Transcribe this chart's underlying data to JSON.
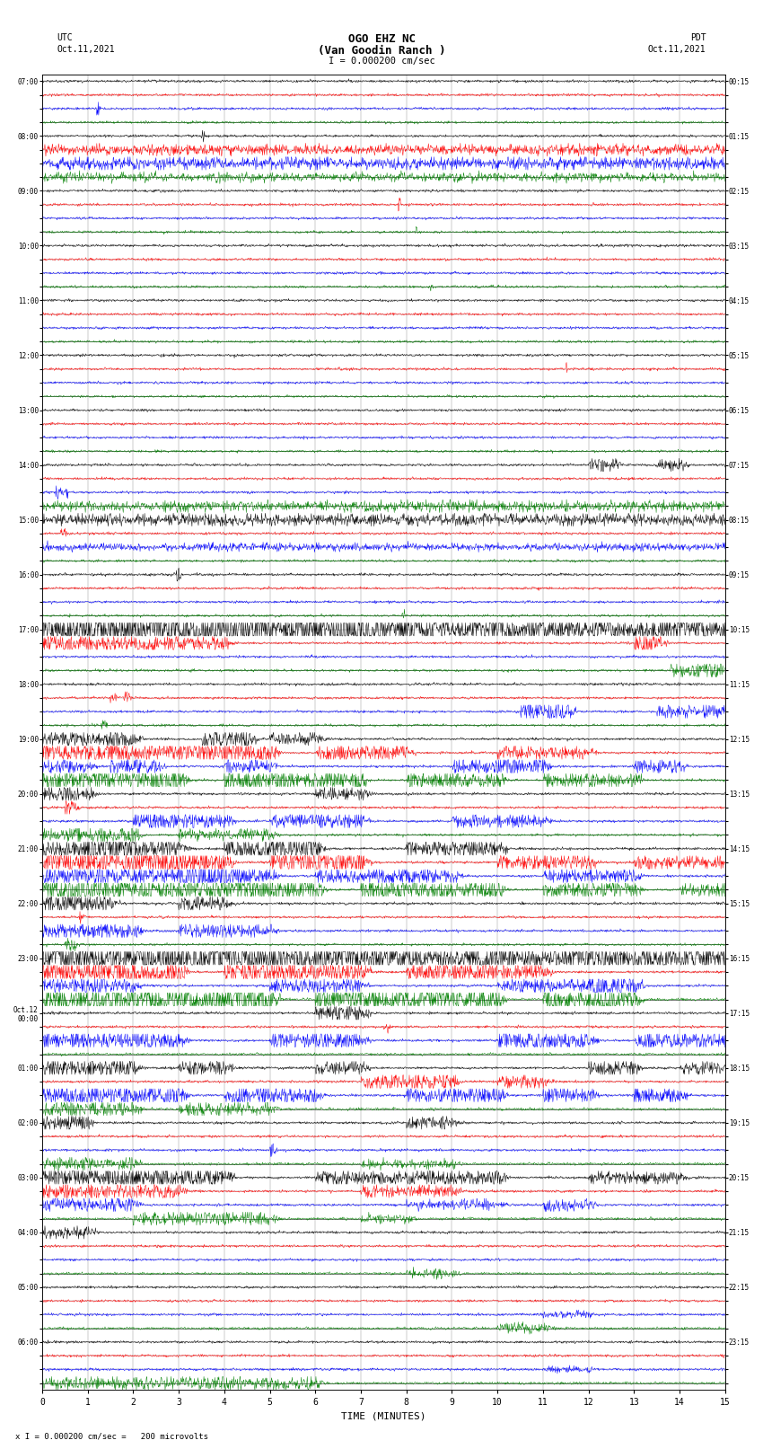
{
  "title_line1": "OGO EHZ NC",
  "title_line2": "(Van Goodin Ranch )",
  "title_line3": "I = 0.000200 cm/sec",
  "left_label_top": "UTC",
  "left_label_date": "Oct.11,2021",
  "right_label_top": "PDT",
  "right_label_date": "Oct.11,2021",
  "xlabel": "TIME (MINUTES)",
  "footer": "x I = 0.000200 cm/sec =   200 microvolts",
  "minutes_per_row": 15,
  "xlim": [
    0,
    15
  ],
  "xticks": [
    0,
    1,
    2,
    3,
    4,
    5,
    6,
    7,
    8,
    9,
    10,
    11,
    12,
    13,
    14,
    15
  ],
  "trace_colors": [
    "black",
    "red",
    "blue",
    "green"
  ],
  "background_color": "#ffffff",
  "grid_color": "#888888",
  "fig_width": 8.5,
  "fig_height": 16.13,
  "utc_labels": {
    "0": "07:00",
    "4": "08:00",
    "8": "09:00",
    "12": "10:00",
    "16": "11:00",
    "20": "12:00",
    "24": "13:00",
    "28": "14:00",
    "32": "15:00",
    "36": "16:00",
    "40": "17:00",
    "44": "18:00",
    "48": "19:00",
    "52": "20:00",
    "56": "21:00",
    "60": "22:00",
    "64": "23:00",
    "68": "Oct.12\n00:00",
    "72": "01:00",
    "76": "02:00",
    "80": "03:00",
    "84": "04:00",
    "88": "05:00",
    "92": "06:00"
  },
  "pdt_labels": {
    "0": "00:15",
    "4": "01:15",
    "8": "02:15",
    "12": "03:15",
    "16": "04:15",
    "20": "05:15",
    "24": "06:15",
    "28": "07:15",
    "32": "08:15",
    "36": "09:15",
    "40": "10:15",
    "44": "11:15",
    "48": "12:15",
    "52": "13:15",
    "56": "14:15",
    "60": "15:15",
    "64": "16:15",
    "68": "17:15",
    "72": "18:15",
    "76": "19:15",
    "80": "20:15",
    "84": "21:15",
    "88": "22:15",
    "92": "23:15"
  },
  "num_rows": 96,
  "row_configs": [
    [
      0,
      0.008,
      []
    ],
    [
      1,
      0.006,
      []
    ],
    [
      2,
      0.006,
      [
        [
          1.2,
          1.25,
          8
        ]
      ]
    ],
    [
      3,
      0.006,
      []
    ],
    [
      0,
      0.01,
      [
        [
          3.5,
          3.55,
          5
        ]
      ]
    ],
    [
      1,
      0.025,
      [
        [
          0,
          15,
          3
        ]
      ]
    ],
    [
      2,
      0.03,
      [
        [
          0,
          15,
          3.5
        ]
      ]
    ],
    [
      3,
      0.022,
      [
        [
          0,
          15,
          2.5
        ]
      ]
    ],
    [
      0,
      0.008,
      []
    ],
    [
      1,
      0.006,
      [
        [
          7.8,
          7.85,
          6
        ]
      ]
    ],
    [
      2,
      0.006,
      []
    ],
    [
      3,
      0.008,
      [
        [
          8.2,
          8.25,
          3
        ]
      ]
    ],
    [
      0,
      0.007,
      []
    ],
    [
      1,
      0.006,
      []
    ],
    [
      2,
      0.006,
      []
    ],
    [
      3,
      0.007,
      [
        [
          8.5,
          8.55,
          3
        ]
      ]
    ],
    [
      0,
      0.007,
      []
    ],
    [
      1,
      0.006,
      []
    ],
    [
      2,
      0.006,
      []
    ],
    [
      3,
      0.007,
      []
    ],
    [
      0,
      0.006,
      []
    ],
    [
      1,
      0.006,
      [
        [
          11.5,
          11.52,
          4
        ]
      ]
    ],
    [
      2,
      0.006,
      []
    ],
    [
      3,
      0.006,
      []
    ],
    [
      0,
      0.007,
      []
    ],
    [
      1,
      0.006,
      []
    ],
    [
      2,
      0.006,
      []
    ],
    [
      3,
      0.007,
      []
    ],
    [
      0,
      0.007,
      [
        [
          12.0,
          12.5,
          5
        ],
        [
          13.5,
          14.0,
          4
        ]
      ]
    ],
    [
      1,
      0.006,
      []
    ],
    [
      2,
      0.006,
      [
        [
          0.3,
          0.4,
          6
        ],
        [
          0.5,
          0.55,
          5
        ]
      ]
    ],
    [
      3,
      0.025,
      [
        [
          0,
          15,
          3
        ]
      ]
    ],
    [
      0,
      0.028,
      [
        [
          0,
          15,
          3.5
        ]
      ]
    ],
    [
      1,
      0.006,
      [
        [
          0.4,
          0.5,
          5
        ]
      ]
    ],
    [
      2,
      0.018,
      [
        [
          0,
          15,
          2
        ]
      ]
    ],
    [
      3,
      0.006,
      []
    ],
    [
      0,
      0.007,
      [
        [
          2.9,
          3.0,
          8
        ]
      ]
    ],
    [
      1,
      0.006,
      []
    ],
    [
      2,
      0.006,
      []
    ],
    [
      3,
      0.006,
      [
        [
          7.9,
          7.95,
          3
        ]
      ]
    ],
    [
      0,
      0.09,
      [
        [
          0,
          7.5,
          12
        ],
        [
          7.5,
          15,
          8
        ]
      ]
    ],
    [
      1,
      0.01,
      [
        [
          0,
          4,
          5
        ],
        [
          13,
          13.5,
          7
        ]
      ]
    ],
    [
      2,
      0.008,
      []
    ],
    [
      3,
      0.006,
      [
        [
          13.8,
          14.2,
          4
        ],
        [
          14.3,
          14.8,
          6
        ]
      ]
    ],
    [
      0,
      0.007,
      []
    ],
    [
      1,
      0.006,
      [
        [
          1.5,
          1.6,
          4
        ],
        [
          1.8,
          1.9,
          4
        ]
      ]
    ],
    [
      2,
      0.015,
      [
        [
          10.5,
          11.5,
          6
        ],
        [
          13.5,
          14.2,
          5
        ],
        [
          14.5,
          15,
          4
        ]
      ]
    ],
    [
      3,
      0.006,
      [
        [
          1.3,
          1.4,
          4
        ]
      ]
    ],
    [
      0,
      0.02,
      [
        [
          0,
          2,
          5
        ],
        [
          3.5,
          4.5,
          6
        ],
        [
          5,
          6,
          4
        ]
      ]
    ],
    [
      1,
      0.04,
      [
        [
          0,
          5,
          7
        ],
        [
          6,
          8,
          5
        ],
        [
          10,
          12,
          4
        ]
      ]
    ],
    [
      2,
      0.015,
      [
        [
          0,
          1,
          4
        ],
        [
          1.5,
          2.5,
          5
        ],
        [
          4,
          5,
          4
        ],
        [
          9,
          11,
          5
        ],
        [
          13,
          14,
          4
        ]
      ]
    ],
    [
      3,
      0.05,
      [
        [
          0,
          3,
          8
        ],
        [
          4,
          7,
          6
        ],
        [
          8,
          10,
          5
        ],
        [
          11,
          13,
          5
        ]
      ]
    ],
    [
      0,
      0.015,
      [
        [
          0,
          1,
          5
        ],
        [
          6,
          7,
          4
        ]
      ]
    ],
    [
      1,
      0.01,
      [
        [
          0.5,
          0.7,
          5
        ]
      ]
    ],
    [
      2,
      0.02,
      [
        [
          2,
          4,
          6
        ],
        [
          5,
          7,
          5
        ],
        [
          9,
          11,
          4
        ]
      ]
    ],
    [
      3,
      0.015,
      [
        [
          0,
          2,
          5
        ],
        [
          3,
          5,
          4
        ]
      ]
    ],
    [
      0,
      0.04,
      [
        [
          0,
          3,
          7
        ],
        [
          1,
          2,
          10
        ],
        [
          4,
          6,
          8
        ],
        [
          8,
          10,
          6
        ]
      ]
    ],
    [
      1,
      0.05,
      [
        [
          0,
          4,
          8
        ],
        [
          2,
          3,
          12
        ],
        [
          5,
          7,
          7
        ],
        [
          10,
          12,
          5
        ],
        [
          13,
          15,
          4
        ]
      ]
    ],
    [
      2,
      0.03,
      [
        [
          0,
          5,
          6
        ],
        [
          3,
          4,
          9
        ],
        [
          6,
          9,
          5
        ],
        [
          11,
          13,
          4
        ]
      ]
    ],
    [
      3,
      0.04,
      [
        [
          0,
          6,
          8
        ],
        [
          7,
          10,
          6
        ],
        [
          11,
          13,
          5
        ],
        [
          14,
          15,
          4
        ]
      ]
    ],
    [
      0,
      0.015,
      [
        [
          0,
          1.5,
          6
        ],
        [
          3,
          4,
          5
        ]
      ]
    ],
    [
      1,
      0.008,
      [
        [
          0.8,
          0.9,
          5
        ]
      ]
    ],
    [
      2,
      0.012,
      [
        [
          0,
          2,
          5
        ],
        [
          3,
          5,
          4
        ]
      ]
    ],
    [
      3,
      0.008,
      [
        [
          0.5,
          0.7,
          4
        ]
      ]
    ],
    [
      0,
      0.09,
      [
        [
          0,
          8,
          12
        ],
        [
          8,
          15,
          8
        ]
      ]
    ],
    [
      1,
      0.05,
      [
        [
          0,
          3,
          8
        ],
        [
          4,
          7,
          7
        ],
        [
          8,
          11,
          6
        ]
      ]
    ],
    [
      2,
      0.02,
      [
        [
          0,
          2,
          5
        ],
        [
          5,
          7,
          4
        ],
        [
          10,
          12,
          4
        ],
        [
          12,
          13,
          7
        ]
      ]
    ],
    [
      3,
      0.08,
      [
        [
          0,
          5,
          10
        ],
        [
          6,
          10,
          8
        ],
        [
          11,
          13,
          7
        ]
      ]
    ],
    [
      0,
      0.012,
      [
        [
          6,
          7,
          5
        ]
      ]
    ],
    [
      1,
      0.008,
      [
        [
          7.5,
          7.6,
          5
        ]
      ]
    ],
    [
      2,
      0.03,
      [
        [
          0,
          3,
          6
        ],
        [
          5,
          7,
          5
        ],
        [
          10,
          12,
          6
        ],
        [
          13,
          15,
          5
        ]
      ]
    ],
    [
      3,
      0.008,
      []
    ],
    [
      0,
      0.025,
      [
        [
          0,
          2,
          6
        ],
        [
          3,
          4,
          5
        ],
        [
          6,
          7,
          4
        ],
        [
          12,
          13,
          5
        ],
        [
          14,
          15,
          4
        ]
      ]
    ],
    [
      1,
      0.015,
      [
        [
          7,
          9,
          5
        ],
        [
          10,
          11,
          4
        ]
      ]
    ],
    [
      2,
      0.035,
      [
        [
          0,
          3,
          7
        ],
        [
          4,
          6,
          6
        ],
        [
          8,
          10,
          5
        ],
        [
          11,
          12,
          6
        ],
        [
          13,
          14,
          5
        ]
      ]
    ],
    [
      3,
      0.02,
      [
        [
          0,
          2,
          5
        ],
        [
          3,
          5,
          4
        ]
      ]
    ],
    [
      0,
      0.012,
      [
        [
          0,
          1,
          5
        ],
        [
          8,
          9,
          4
        ]
      ]
    ],
    [
      1,
      0.008,
      []
    ],
    [
      2,
      0.01,
      [
        [
          5,
          5.1,
          6
        ]
      ]
    ],
    [
      3,
      0.015,
      [
        [
          0,
          2,
          4
        ],
        [
          7,
          9,
          3
        ]
      ]
    ],
    [
      0,
      0.05,
      [
        [
          0,
          4,
          7
        ],
        [
          6,
          10,
          5
        ],
        [
          12,
          14,
          4
        ]
      ]
    ],
    [
      1,
      0.035,
      [
        [
          0,
          3,
          5
        ],
        [
          7,
          9,
          4
        ]
      ]
    ],
    [
      2,
      0.025,
      [
        [
          0,
          2,
          4
        ],
        [
          8,
          10,
          3
        ],
        [
          11,
          12,
          4
        ]
      ]
    ],
    [
      3,
      0.03,
      [
        [
          2,
          5,
          4
        ],
        [
          7,
          8,
          3
        ]
      ]
    ],
    [
      0,
      0.012,
      [
        [
          0,
          1,
          4
        ]
      ]
    ],
    [
      1,
      0.01,
      []
    ],
    [
      2,
      0.01,
      []
    ],
    [
      3,
      0.012,
      [
        [
          8,
          9,
          3
        ]
      ]
    ],
    [
      0,
      0.01,
      []
    ],
    [
      1,
      0.008,
      []
    ],
    [
      2,
      0.01,
      [
        [
          11,
          12,
          2
        ]
      ]
    ],
    [
      3,
      0.008,
      [
        [
          10,
          11,
          3
        ]
      ]
    ],
    [
      0,
      0.01,
      []
    ],
    [
      1,
      0.008,
      []
    ],
    [
      2,
      0.012,
      [
        [
          11,
          12,
          2
        ]
      ]
    ],
    [
      3,
      0.025,
      [
        [
          0,
          6,
          4
        ]
      ]
    ]
  ]
}
